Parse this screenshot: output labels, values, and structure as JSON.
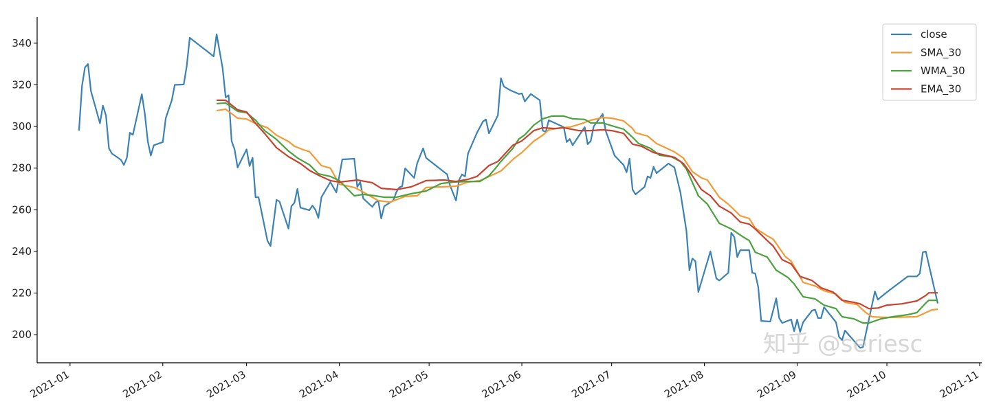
{
  "chart_data": {
    "type": "line",
    "title": "",
    "xlabel": "",
    "ylabel": "",
    "x_units": "days since 2021-01-01",
    "xlim": [
      -11,
      304.7
    ],
    "ylim": [
      186.5,
      352.5
    ],
    "grid": false,
    "legend_position": "top-right",
    "xticks": [
      {
        "value": 0,
        "label": "2021-01"
      },
      {
        "value": 31,
        "label": "2021-02"
      },
      {
        "value": 59,
        "label": "2021-03"
      },
      {
        "value": 90,
        "label": "2021-04"
      },
      {
        "value": 120,
        "label": "2021-05"
      },
      {
        "value": 151,
        "label": "2021-06"
      },
      {
        "value": 181,
        "label": "2021-07"
      },
      {
        "value": 212,
        "label": "2021-08"
      },
      {
        "value": 243,
        "label": "2021-09"
      },
      {
        "value": 273,
        "label": "2021-10"
      },
      {
        "value": 304,
        "label": "2021-11"
      }
    ],
    "yticks": [
      200,
      220,
      240,
      260,
      280,
      300,
      320,
      340
    ],
    "series": [
      {
        "name": "close",
        "color": "#3b82b4",
        "x": [
          3,
          4,
          5,
          6,
          7,
          10,
          11,
          12,
          13,
          14,
          17,
          18,
          19,
          20,
          21,
          24,
          25,
          26,
          27,
          28,
          31,
          32,
          34,
          35,
          38,
          39,
          40,
          48,
          49,
          51,
          52,
          53,
          54,
          55,
          56,
          59,
          60,
          61,
          62,
          63,
          66,
          67,
          69,
          70,
          73,
          74,
          75,
          76,
          77,
          80,
          81,
          82,
          83,
          84,
          87,
          89,
          91,
          95,
          96,
          97,
          98,
          101,
          102,
          103,
          104,
          105,
          108,
          109,
          110,
          111,
          112,
          115,
          116,
          118,
          119,
          126,
          127,
          129,
          130,
          131,
          132,
          133,
          136,
          138,
          139,
          140,
          143,
          144,
          145,
          147,
          150,
          151,
          152,
          154,
          157,
          158,
          159,
          160,
          165,
          166,
          167,
          168,
          172,
          173,
          174,
          175,
          178,
          179,
          182,
          185,
          186,
          187,
          188,
          189,
          192,
          193,
          194,
          195,
          196,
          200,
          202,
          204,
          206,
          207,
          208,
          209,
          210,
          214,
          216,
          217,
          220,
          221,
          222,
          223,
          224,
          227,
          228,
          229,
          230,
          231,
          234,
          235,
          236,
          237,
          238,
          241,
          242,
          243,
          244,
          245,
          248,
          249,
          250,
          251,
          252,
          256,
          257,
          258,
          259,
          264,
          265,
          269,
          270,
          271,
          274,
          280,
          283,
          284,
          285,
          286,
          290
        ],
        "y": [
          298,
          319.5,
          328.4,
          330,
          317,
          301.5,
          310,
          305.3,
          289.5,
          287,
          284,
          281.5,
          285,
          297,
          296,
          315.5,
          306,
          292.8,
          286,
          291,
          292.5,
          304,
          312.6,
          320,
          320.2,
          329,
          342.6,
          333.7,
          344.3,
          328,
          314,
          315,
          293,
          289,
          280.3,
          289,
          281,
          285,
          266,
          266,
          245,
          242.6,
          264.7,
          264,
          251,
          261.7,
          263.4,
          270,
          261,
          259.8,
          262,
          260,
          256,
          266,
          273.3,
          268.3,
          284.2,
          284.5,
          271,
          273.3,
          265.4,
          261.4,
          263.4,
          264.4,
          255.8,
          261.7,
          264.4,
          268.3,
          270.7,
          271.3,
          279.9,
          275.3,
          282.2,
          289.5,
          284.9,
          277,
          271.7,
          264.4,
          274.3,
          277,
          276,
          287,
          297,
          302.4,
          303.4,
          296.7,
          305.3,
          323.2,
          319.2,
          317.5,
          315.6,
          315.9,
          312,
          315.6,
          312.6,
          298,
          297.4,
          303,
          299.7,
          292.5,
          294,
          291,
          299.7,
          291.5,
          293,
          300,
          306,
          298,
          286,
          281.5,
          278,
          284.5,
          269.7,
          267.4,
          271,
          276,
          275.3,
          280.6,
          277.6,
          282.2,
          280.3,
          268.3,
          250,
          231,
          236.6,
          235.3,
          220.5,
          240,
          227,
          226,
          229.7,
          248.9,
          246.9,
          237.3,
          240.6,
          240.6,
          229.7,
          229.4,
          222.8,
          206.6,
          206.3,
          211.6,
          217.5,
          208,
          205.6,
          207.3,
          201.7,
          207.3,
          201.3,
          206,
          211.6,
          212,
          208,
          208,
          213.2,
          206,
          199,
          197.4,
          202,
          193.7,
          194,
          220.8,
          216.8,
          218.1,
          221.5,
          228,
          228,
          229.4,
          239.6,
          240,
          215
        ]
      },
      {
        "name": "SMA_30",
        "color": "#f39a35",
        "x": [
          49,
          52,
          56,
          59,
          62,
          66,
          69,
          73,
          75,
          78,
          80,
          84,
          87,
          90,
          95,
          97,
          103,
          107,
          112,
          116,
          119,
          124,
          129,
          133,
          137,
          141,
          144,
          148,
          151,
          155,
          158,
          160,
          164,
          167,
          171,
          174,
          178,
          181,
          185,
          188,
          189,
          193,
          196,
          199,
          202,
          205,
          208,
          211,
          213,
          217,
          220,
          224,
          227,
          229,
          233,
          235,
          239,
          241,
          245,
          249,
          252,
          256,
          259,
          263,
          266,
          268,
          272,
          275,
          283,
          286,
          288,
          290
        ],
        "y": [
          307.6,
          308.3,
          304,
          303.6,
          301.4,
          299.4,
          295.8,
          292.8,
          290.5,
          288.8,
          287.9,
          281.2,
          280,
          272.3,
          270.7,
          269.3,
          264.4,
          263.7,
          266.4,
          266.7,
          270.7,
          271,
          271.3,
          273.3,
          274,
          276.6,
          278.6,
          284.2,
          287.5,
          293,
          295.8,
          298.4,
          299.4,
          299.7,
          301.4,
          303,
          304.3,
          304,
          302.7,
          299,
          297,
          295.4,
          291.8,
          289.8,
          287.8,
          284.8,
          278.3,
          275.3,
          274.3,
          266,
          262.7,
          257.1,
          255.8,
          251.2,
          247.5,
          245.9,
          237.6,
          235.3,
          225.1,
          223.4,
          221.1,
          219.5,
          215.5,
          214.5,
          210.6,
          208.6,
          208.3,
          208.3,
          208.6,
          210.6,
          211.9,
          212.2
        ]
      },
      {
        "name": "WMA_30",
        "color": "#4aa23f",
        "x": [
          49,
          52,
          56,
          59,
          62,
          65,
          69,
          73,
          76,
          80,
          83,
          87,
          90,
          95,
          98,
          102,
          105,
          109,
          114,
          119,
          124,
          128,
          133,
          137,
          140,
          142,
          144,
          148,
          150,
          152,
          155,
          158,
          161,
          165,
          168,
          172,
          174,
          178,
          181,
          185,
          188,
          190,
          194,
          197,
          201,
          204,
          206,
          210,
          213,
          217,
          221,
          225,
          227,
          229,
          233,
          236,
          240,
          242,
          245,
          249,
          252,
          256,
          258,
          262,
          265,
          267,
          271,
          275,
          280,
          283,
          286,
          287,
          290
        ],
        "y": [
          311,
          311.3,
          307.3,
          306.6,
          303,
          298,
          293.8,
          288.2,
          284.9,
          281.6,
          277.3,
          276,
          274,
          266.7,
          267.4,
          266.7,
          266,
          266,
          267.7,
          269,
          272.6,
          273.3,
          273.6,
          273.6,
          276.3,
          279.6,
          283.2,
          289.5,
          294,
          296,
          300.7,
          303.7,
          305,
          305,
          303.7,
          303.4,
          301.7,
          301.7,
          300.4,
          298.7,
          294.8,
          291.8,
          289.5,
          286.2,
          285.4,
          283.2,
          279.6,
          266.7,
          262.7,
          253.5,
          250.8,
          246.9,
          245.2,
          239.6,
          237.3,
          231,
          227.4,
          224.4,
          218.2,
          217.2,
          214.2,
          212.5,
          208.6,
          207.6,
          205.6,
          205.6,
          207.6,
          208.6,
          209.6,
          210.6,
          215.2,
          216.5,
          216.5
        ]
      },
      {
        "name": "EMA_30",
        "color": "#c8432f",
        "x": [
          49,
          52,
          56,
          59,
          62,
          65,
          69,
          73,
          77,
          80,
          83,
          87,
          90,
          96,
          101,
          104,
          109,
          114,
          119,
          125,
          129,
          133,
          136,
          140,
          143,
          148,
          151,
          155,
          158,
          162,
          165,
          170,
          174,
          178,
          181,
          185,
          188,
          191,
          195,
          198,
          202,
          205,
          208,
          211,
          214,
          217,
          221,
          224,
          227,
          229,
          233,
          235,
          238,
          241,
          244,
          248,
          251,
          255,
          258,
          262,
          264,
          267,
          270,
          273,
          278,
          283,
          286,
          287,
          290
        ],
        "y": [
          312.6,
          312.6,
          308,
          307,
          301.4,
          296.7,
          289.8,
          285.5,
          282.2,
          278.9,
          276.6,
          274,
          273.3,
          274.3,
          273,
          270.3,
          269.7,
          271,
          274,
          274.3,
          273.6,
          274.6,
          276,
          281.2,
          283.2,
          291,
          293.1,
          298,
          299.4,
          299,
          299.4,
          298,
          298,
          298.4,
          298,
          296.7,
          291.5,
          290.5,
          287.5,
          286.5,
          285.2,
          282.2,
          276.3,
          269.7,
          266.7,
          261.7,
          258.4,
          254.1,
          253.1,
          250.8,
          245.2,
          242.6,
          236,
          234,
          228,
          226,
          222.5,
          220.5,
          216.5,
          215.5,
          214.8,
          212.5,
          212.8,
          214.2,
          214.8,
          216.2,
          218.8,
          220.1,
          220.1
        ]
      }
    ],
    "watermark": "知乎 @seriesc"
  }
}
